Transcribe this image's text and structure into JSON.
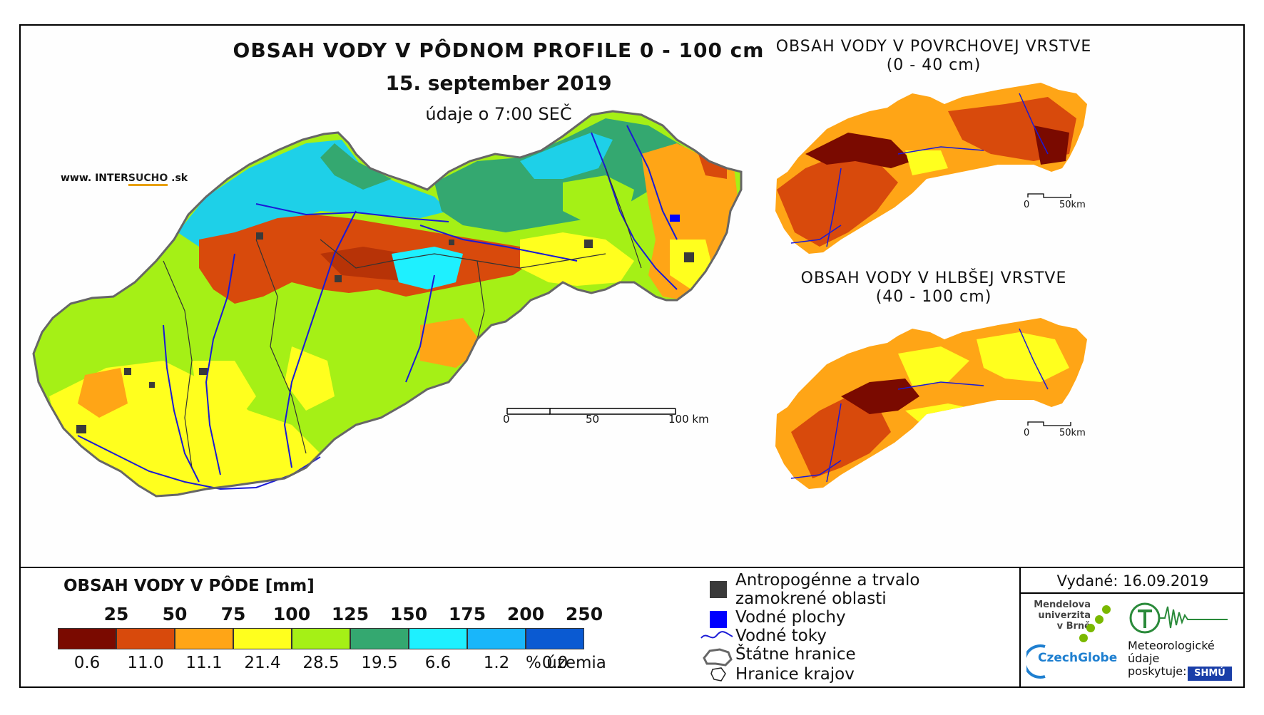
{
  "title": "OBSAH VODY V PÔDNOM PROFILE 0 - 100 cm",
  "date": "15. september 2019",
  "time_note": "údaje o 7:00 SEČ",
  "watermark": {
    "prefix": "www. INTER",
    "brand": "SUCHO",
    "suffix": " .sk"
  },
  "inset_top": {
    "title_line1": "OBSAH VODY V POVRCHOVEJ VRSTVE",
    "title_line2": "(0 - 40 cm)",
    "scale_0": "0",
    "scale_end": "50km"
  },
  "inset_bottom": {
    "title_line1": "OBSAH VODY V HLBŠEJ VRSTVE",
    "title_line2": "(40 - 100 cm)",
    "scale_0": "0",
    "scale_end": "50km"
  },
  "main_scale": {
    "label_0": "0",
    "label_mid": "50",
    "label_end": "100 km"
  },
  "legend": {
    "title": "OBSAH VODY V PÔDE [mm]",
    "classes": [
      {
        "bound": "",
        "color": "#7a0a00",
        "pct": "0.6"
      },
      {
        "bound": "25",
        "color": "#d84a0c",
        "pct": "11.0"
      },
      {
        "bound": "50",
        "color": "#ffa516",
        "pct": "11.1"
      },
      {
        "bound": "75",
        "color": "#ffff1e",
        "pct": "21.4"
      },
      {
        "bound": "100",
        "color": "#a5f016",
        "pct": "28.5"
      },
      {
        "bound": "125",
        "color": "#34a870",
        "pct": "19.5"
      },
      {
        "bound": "150",
        "color": "#1ef0ff",
        "pct": "6.6"
      },
      {
        "bound": "175",
        "color": "#19b6fa",
        "pct": "1.2"
      },
      {
        "bound": "200",
        "color": "#0a5ad2",
        "pct": "0.0"
      }
    ],
    "last_bound": "250",
    "pct_unit": "% územia"
  },
  "symbols": {
    "anthropogenic_line1": "Antropogénne a trvalo",
    "anthropogenic_line2": "zamokrené oblasti",
    "water_bodies": "Vodné plochy",
    "rivers": "Vodné toky",
    "state_border": "Štátne hranice",
    "regions": "Hranice krajov"
  },
  "issued": "Vydané: 16.09.2019",
  "logos": {
    "mendel_line1": "Mendelova",
    "mendel_line2": "univerzita",
    "mendel_line3": "v Brně",
    "czechglobe": "CzechGlobe",
    "meteo_line1": "Meteorologické",
    "meteo_line2": "údaje",
    "meteo_line3": "poskytuje:",
    "shmu": "SHMÚ"
  },
  "colors": {
    "frame": "#000000",
    "river": "#1a1ad6",
    "border": "#555555",
    "urban": "#3a3a3a",
    "water": "#0000ff"
  }
}
